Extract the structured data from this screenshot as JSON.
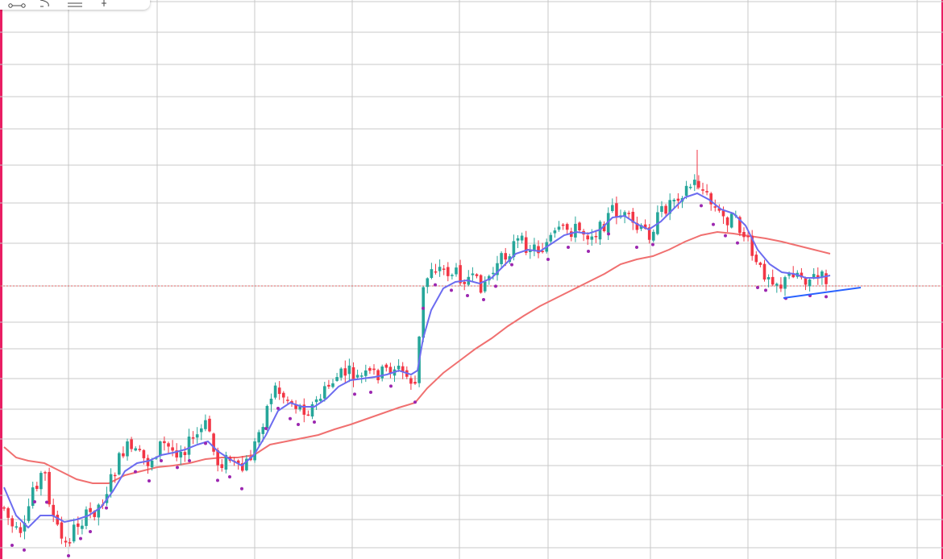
{
  "chart_data": {
    "type": "candlestick",
    "title": "",
    "xlabel": "",
    "ylabel": "",
    "grid": true,
    "price_line": 355,
    "ylim": [
      694,
      0
    ],
    "colors": {
      "up": "#26a69a",
      "down": "#f23645",
      "fast_ma": "#6c6cf0",
      "slow_ma": "#f07070",
      "marker": "#9c27b0",
      "trendline": "#2962ff",
      "price_line": "#e06666",
      "grid": "#c8c8c8"
    },
    "anchors": [
      [
        5,
        630
      ],
      [
        15,
        655
      ],
      [
        28,
        672
      ],
      [
        40,
        605
      ],
      [
        55,
        585
      ],
      [
        65,
        640
      ],
      [
        80,
        680
      ],
      [
        95,
        650
      ],
      [
        110,
        640
      ],
      [
        125,
        625
      ],
      [
        140,
        590
      ],
      [
        155,
        555
      ],
      [
        170,
        565
      ],
      [
        185,
        575
      ],
      [
        200,
        550
      ],
      [
        215,
        560
      ],
      [
        230,
        555
      ],
      [
        245,
        540
      ],
      [
        258,
        525
      ],
      [
        268,
        575
      ],
      [
        285,
        570
      ],
      [
        298,
        588
      ],
      [
        312,
        565
      ],
      [
        325,
        525
      ],
      [
        340,
        480
      ],
      [
        352,
        492
      ],
      [
        370,
        505
      ],
      [
        385,
        508
      ],
      [
        400,
        490
      ],
      [
        415,
        470
      ],
      [
        430,
        462
      ],
      [
        445,
        470
      ],
      [
        460,
        465
      ],
      [
        475,
        462
      ],
      [
        490,
        455
      ],
      [
        505,
        468
      ],
      [
        518,
        480
      ],
      [
        522,
        370
      ],
      [
        535,
        330
      ],
      [
        550,
        335
      ],
      [
        565,
        340
      ],
      [
        580,
        345
      ],
      [
        595,
        355
      ],
      [
        610,
        340
      ],
      [
        625,
        320
      ],
      [
        640,
        300
      ],
      [
        655,
        305
      ],
      [
        670,
        310
      ],
      [
        685,
        295
      ],
      [
        700,
        285
      ],
      [
        715,
        285
      ],
      [
        730,
        290
      ],
      [
        745,
        285
      ],
      [
        760,
        260
      ],
      [
        775,
        270
      ],
      [
        790,
        285
      ],
      [
        805,
        290
      ],
      [
        820,
        265
      ],
      [
        835,
        245
      ],
      [
        850,
        235
      ],
      [
        865,
        225
      ],
      [
        880,
        250
      ],
      [
        895,
        270
      ],
      [
        910,
        272
      ],
      [
        925,
        295
      ],
      [
        940,
        335
      ],
      [
        955,
        340
      ],
      [
        970,
        355
      ],
      [
        985,
        335
      ],
      [
        1000,
        345
      ],
      [
        1015,
        345
      ],
      [
        1030,
        347
      ]
    ],
    "fast_ma": [
      [
        5,
        605
      ],
      [
        20,
        640
      ],
      [
        35,
        655
      ],
      [
        50,
        640
      ],
      [
        65,
        640
      ],
      [
        80,
        648
      ],
      [
        95,
        645
      ],
      [
        110,
        640
      ],
      [
        125,
        630
      ],
      [
        140,
        610
      ],
      [
        155,
        585
      ],
      [
        170,
        575
      ],
      [
        185,
        572
      ],
      [
        200,
        565
      ],
      [
        215,
        562
      ],
      [
        230,
        558
      ],
      [
        245,
        552
      ],
      [
        258,
        548
      ],
      [
        270,
        560
      ],
      [
        285,
        570
      ],
      [
        300,
        578
      ],
      [
        315,
        565
      ],
      [
        330,
        540
      ],
      [
        345,
        510
      ],
      [
        360,
        500
      ],
      [
        375,
        505
      ],
      [
        390,
        505
      ],
      [
        405,
        495
      ],
      [
        420,
        480
      ],
      [
        435,
        472
      ],
      [
        450,
        470
      ],
      [
        465,
        468
      ],
      [
        480,
        465
      ],
      [
        495,
        460
      ],
      [
        510,
        465
      ],
      [
        518,
        460
      ],
      [
        525,
        420
      ],
      [
        535,
        385
      ],
      [
        550,
        358
      ],
      [
        565,
        350
      ],
      [
        580,
        348
      ],
      [
        595,
        352
      ],
      [
        610,
        345
      ],
      [
        625,
        330
      ],
      [
        640,
        315
      ],
      [
        655,
        310
      ],
      [
        670,
        312
      ],
      [
        685,
        302
      ],
      [
        700,
        292
      ],
      [
        715,
        288
      ],
      [
        730,
        290
      ],
      [
        745,
        285
      ],
      [
        760,
        270
      ],
      [
        775,
        268
      ],
      [
        790,
        278
      ],
      [
        805,
        285
      ],
      [
        820,
        275
      ],
      [
        835,
        260
      ],
      [
        850,
        245
      ],
      [
        865,
        240
      ],
      [
        880,
        248
      ],
      [
        895,
        260
      ],
      [
        910,
        265
      ],
      [
        925,
        280
      ],
      [
        940,
        310
      ],
      [
        955,
        328
      ],
      [
        970,
        338
      ],
      [
        985,
        340
      ],
      [
        1000,
        345
      ],
      [
        1015,
        345
      ],
      [
        1030,
        342
      ]
    ],
    "slow_ma": [
      [
        5,
        555
      ],
      [
        20,
        568
      ],
      [
        35,
        572
      ],
      [
        55,
        575
      ],
      [
        75,
        585
      ],
      [
        95,
        595
      ],
      [
        115,
        600
      ],
      [
        135,
        600
      ],
      [
        155,
        590
      ],
      [
        175,
        585
      ],
      [
        195,
        580
      ],
      [
        215,
        578
      ],
      [
        235,
        575
      ],
      [
        255,
        570
      ],
      [
        275,
        568
      ],
      [
        295,
        568
      ],
      [
        315,
        565
      ],
      [
        335,
        552
      ],
      [
        355,
        548
      ],
      [
        375,
        544
      ],
      [
        395,
        540
      ],
      [
        415,
        533
      ],
      [
        435,
        527
      ],
      [
        455,
        520
      ],
      [
        475,
        513
      ],
      [
        495,
        506
      ],
      [
        515,
        500
      ],
      [
        530,
        482
      ],
      [
        550,
        463
      ],
      [
        570,
        448
      ],
      [
        590,
        433
      ],
      [
        610,
        420
      ],
      [
        630,
        405
      ],
      [
        650,
        392
      ],
      [
        670,
        380
      ],
      [
        690,
        370
      ],
      [
        710,
        360
      ],
      [
        730,
        350
      ],
      [
        750,
        340
      ],
      [
        770,
        328
      ],
      [
        790,
        322
      ],
      [
        810,
        318
      ],
      [
        830,
        310
      ],
      [
        850,
        300
      ],
      [
        870,
        292
      ],
      [
        890,
        288
      ],
      [
        910,
        290
      ],
      [
        930,
        293
      ],
      [
        950,
        296
      ],
      [
        970,
        300
      ],
      [
        990,
        305
      ],
      [
        1010,
        310
      ],
      [
        1030,
        315
      ]
    ],
    "trendline": [
      [
        972,
        370
      ],
      [
        1068,
        357
      ]
    ],
    "marker_x": [
      15,
      30,
      43,
      58,
      85,
      100,
      112,
      132,
      168,
      185,
      200,
      220,
      235,
      255,
      270,
      285,
      300,
      330,
      345,
      360,
      370,
      390,
      440,
      460,
      485,
      515,
      525,
      540,
      560,
      580,
      600,
      615,
      635,
      680,
      705,
      730,
      755,
      790,
      810,
      870,
      885,
      900,
      915,
      940,
      950,
      975,
      1005,
      1025
    ]
  },
  "toolbar": {
    "icons": [
      "line-tool",
      "curve-tool",
      "lines-tool",
      "pen-tool"
    ]
  }
}
